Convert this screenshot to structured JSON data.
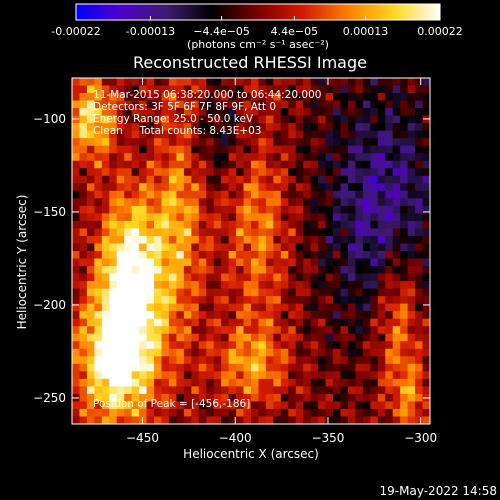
{
  "colorbar": {
    "tick_labels": [
      "-0.00022",
      "-0.00013",
      "−4.4e−05",
      "4.4e−05",
      "0.00013",
      "0.00022"
    ],
    "tick_values": [
      -0.00022,
      -0.00013,
      -4.4e-05,
      4.4e-05,
      0.00013,
      0.00022
    ],
    "range": [
      -0.00022,
      0.00022
    ],
    "units": "(photons cm⁻² s⁻¹ asec⁻²)",
    "colors": [
      "#0000ff",
      "#5000c8",
      "#3c1a6e",
      "#000000",
      "#7a0000",
      "#d41c00",
      "#ff8000",
      "#ffd820",
      "#ffffff"
    ]
  },
  "chart_data": {
    "type": "heatmap",
    "title": "Reconstructed RHESSI Image",
    "xlabel": "Heliocentric X (arcsec)",
    "ylabel": "Heliocentric Y (arcsec)",
    "xlim": [
      -488,
      -295
    ],
    "ylim": [
      -264,
      -78
    ],
    "x_ticks": [
      -450,
      -400,
      -350,
      -300
    ],
    "y_ticks": [
      -250,
      -200,
      -150,
      -100
    ],
    "grid": false,
    "annotations": [
      "11-Mar-2015 06:38:20.000 to 06:44:20.000",
      "Detectors: 3F 5F 6F 7F 8F 9F, Att 0",
      "Energy Range: 25.0 - 50.0 keV",
      "Clean     Total counts: 8.43E+03"
    ],
    "peak_label": "Position of Peak = [-456,-186]",
    "peak_position": [
      -456,
      -186
    ],
    "total_counts": 8430,
    "energy_range_keV": [
      25.0,
      50.0
    ],
    "pixel_grid": [
      48,
      46
    ]
  },
  "footer": {
    "timestamp": "19-May-2022 14:58"
  }
}
